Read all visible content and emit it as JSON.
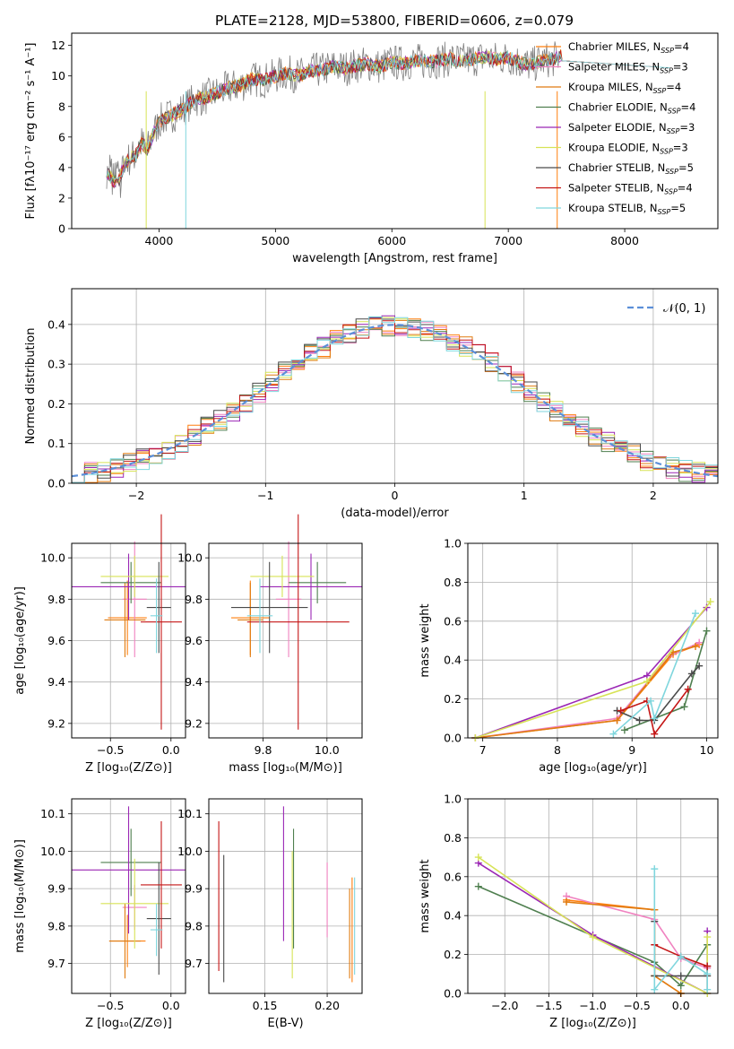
{
  "figure_title": "PLATE=2128, MJD=53800, FIBERID=0606, z=0.079",
  "colors": [
    "#ff7f0e",
    "#f082c0",
    "#e07b10",
    "#4f7f4f",
    "#9b27b5",
    "#d7e356",
    "#4a4a4a",
    "#c41616",
    "#7fd6dd"
  ],
  "chart_data": [
    {
      "id": "spectrum",
      "type": "line",
      "title": "PLATE=2128, MJD=53800, FIBERID=0606, z=0.079",
      "xlabel": "wavelength [Angstrom, rest frame]",
      "ylabel": "Flux [fλ10⁻¹⁷ erg cm⁻² s⁻¹ A⁻¹]",
      "xlim": [
        3250,
        8800
      ],
      "ylim": [
        0,
        12.8
      ],
      "xticks": [
        4000,
        5000,
        6000,
        7000,
        8000
      ],
      "yticks": [
        0,
        2,
        4,
        6,
        8,
        10,
        12
      ],
      "grid": false,
      "legend_position": "top-right",
      "data_color": "#808080",
      "data_x": [
        3550,
        3600,
        3650,
        3700,
        3750,
        3800,
        3850,
        3900,
        3950,
        4000,
        4100,
        4200,
        4300,
        4400,
        4500,
        4600,
        4700,
        4800,
        4900,
        5000,
        5100,
        5200,
        5300,
        5400,
        5500,
        5600,
        5700,
        5800,
        5900,
        6000,
        6100,
        6200,
        6300,
        6400,
        6500,
        6600,
        6700,
        6800,
        6900,
        7000,
        7100,
        7200,
        7300,
        7400,
        7450
      ],
      "data_y": [
        3.8,
        3.2,
        3.0,
        4.2,
        4.6,
        4.8,
        5.6,
        5.2,
        6.2,
        7.0,
        7.4,
        7.8,
        8.4,
        8.6,
        8.9,
        9.2,
        9.4,
        9.8,
        9.7,
        10.0,
        10.2,
        10.0,
        10.3,
        10.4,
        10.6,
        10.5,
        10.7,
        10.8,
        10.6,
        10.9,
        10.8,
        11.0,
        10.9,
        11.0,
        11.1,
        11.0,
        11.1,
        11.2,
        11.1,
        11.2,
        10.9,
        10.7,
        11.0,
        11.1,
        11.3
      ],
      "series": [
        {
          "name": "Chabrier MILES, N_SSP=4"
        },
        {
          "name": "Salpeter MILES, N_SSP=3"
        },
        {
          "name": "Kroupa MILES, N_SSP=4"
        },
        {
          "name": "Chabrier ELODIE, N_SSP=4"
        },
        {
          "name": "Salpeter ELODIE, N_SSP=3"
        },
        {
          "name": "Kroupa ELODIE, N_SSP=3"
        },
        {
          "name": "Chabrier STELIB, N_SSP=5"
        },
        {
          "name": "Salpeter STELIB, N_SSP=4"
        },
        {
          "name": "Kroupa STELIB, N_SSP=5"
        }
      ]
    },
    {
      "id": "residuals",
      "type": "line",
      "xlabel": "(data-model)/error",
      "ylabel": "Normed distribution",
      "xlim": [
        -2.5,
        2.5
      ],
      "ylim": [
        0,
        0.49
      ],
      "xticks": [
        -2,
        -1,
        0,
        1,
        2
      ],
      "yticks": [
        0.0,
        0.1,
        0.2,
        0.3,
        0.4
      ],
      "grid": true,
      "legend_position": "top-right",
      "legend": "𝒩(0, 1)",
      "gaussian_color": "#5b8fd8"
    },
    {
      "id": "age_vs_Z",
      "type": "scatter",
      "xlabel": "Z [log₁₀(Z/Z⊙)]",
      "ylabel": "age  [log₁₀(age/yr)]",
      "xlim": [
        -0.82,
        0.12
      ],
      "ylim": [
        9.13,
        10.07
      ],
      "xticks": [
        -0.5,
        0.0
      ],
      "yticks": [
        9.2,
        9.4,
        9.6,
        9.8,
        10.0
      ],
      "grid": true,
      "points": [
        {
          "x": -0.36,
          "y": 9.71,
          "xerr": 0.16,
          "yerr": 0.18
        },
        {
          "x": -0.3,
          "y": 9.8,
          "xerr": 0.1,
          "yerr": 0.28
        },
        {
          "x": -0.38,
          "y": 9.7,
          "xerr": 0.17,
          "yerr": 0.18
        },
        {
          "x": -0.33,
          "y": 9.88,
          "xerr": 0.25,
          "yerr": 0.1
        },
        {
          "x": -0.35,
          "y": 9.86,
          "xerr": 0.47,
          "yerr": 0.16
        },
        {
          "x": -0.3,
          "y": 9.91,
          "xerr": 0.28,
          "yerr": 0.1
        },
        {
          "x": -0.1,
          "y": 9.76,
          "xerr": 0.1,
          "yerr": 0.22
        },
        {
          "x": -0.08,
          "y": 9.69,
          "xerr": 0.17,
          "yerr": 0.52
        },
        {
          "x": -0.12,
          "y": 9.72,
          "xerr": 0.05,
          "yerr": 0.18
        }
      ]
    },
    {
      "id": "age_vs_mass",
      "type": "scatter",
      "xlabel": "mass [log₁₀(M/M⊙)]",
      "ylabel": "",
      "xlim": [
        9.63,
        10.11
      ],
      "ylim": [
        9.13,
        10.07
      ],
      "xticks": [
        9.8,
        10.0
      ],
      "yticks": [
        9.2,
        9.4,
        9.6,
        9.8,
        10.0
      ],
      "grid": true,
      "points": [
        {
          "x": 9.76,
          "y": 9.71,
          "xerr": 0.06,
          "yerr": 0.18
        },
        {
          "x": 9.88,
          "y": 9.8,
          "xerr": 0.04,
          "yerr": 0.28
        },
        {
          "x": 9.76,
          "y": 9.7,
          "xerr": 0.04,
          "yerr": 0.18
        },
        {
          "x": 9.97,
          "y": 9.88,
          "xerr": 0.09,
          "yerr": 0.1
        },
        {
          "x": 9.95,
          "y": 9.86,
          "xerr": 0.16,
          "yerr": 0.16
        },
        {
          "x": 9.86,
          "y": 9.91,
          "xerr": 0.1,
          "yerr": 0.1
        },
        {
          "x": 9.82,
          "y": 9.76,
          "xerr": 0.12,
          "yerr": 0.22
        },
        {
          "x": 9.91,
          "y": 9.69,
          "xerr": 0.16,
          "yerr": 0.52
        },
        {
          "x": 9.79,
          "y": 9.72,
          "xerr": 0.04,
          "yerr": 0.18
        }
      ]
    },
    {
      "id": "massweight_vs_age",
      "type": "line",
      "xlabel": "age  [log₁₀(age/yr)]",
      "ylabel": "mass weight",
      "xlim": [
        6.8,
        10.15
      ],
      "ylim": [
        0,
        1
      ],
      "xticks": [
        7,
        8,
        9,
        10
      ],
      "yticks": [
        0.0,
        0.2,
        0.4,
        0.6,
        0.8,
        1.0
      ],
      "grid": true,
      "lines": [
        {
          "x": [
            6.9,
            8.8,
            9.55,
            9.9
          ],
          "y": [
            0.0,
            0.09,
            0.43,
            0.48
          ]
        },
        {
          "x": [
            6.9,
            8.8,
            9.5,
            9.9
          ],
          "y": [
            0.0,
            0.1,
            0.42,
            0.49
          ]
        },
        {
          "x": [
            6.9,
            8.8,
            9.55,
            9.85
          ],
          "y": [
            0.0,
            0.09,
            0.44,
            0.47
          ]
        },
        {
          "x": [
            8.9,
            9.7,
            10.0
          ],
          "y": [
            0.04,
            0.16,
            0.55
          ]
        },
        {
          "x": [
            6.9,
            9.2,
            10.0
          ],
          "y": [
            0.0,
            0.32,
            0.67
          ]
        },
        {
          "x": [
            6.9,
            9.2,
            10.05
          ],
          "y": [
            0.0,
            0.29,
            0.7
          ]
        },
        {
          "x": [
            8.8,
            9.1,
            9.3,
            9.8,
            9.9
          ],
          "y": [
            0.14,
            0.09,
            0.09,
            0.33,
            0.37
          ]
        },
        {
          "x": [
            8.85,
            9.2,
            9.3,
            9.75
          ],
          "y": [
            0.14,
            0.19,
            0.02,
            0.25
          ]
        },
        {
          "x": [
            8.75,
            9.25,
            9.3,
            9.85
          ],
          "y": [
            0.02,
            0.19,
            0.1,
            0.64
          ]
        }
      ]
    },
    {
      "id": "mass_vs_Z",
      "type": "scatter",
      "xlabel": "Z [log₁₀(Z/Z⊙)]",
      "ylabel": "mass [log₁₀(M/M⊙)]",
      "xlim": [
        -0.82,
        0.12
      ],
      "ylim": [
        9.62,
        10.14
      ],
      "xticks": [
        -0.5,
        0.0
      ],
      "yticks": [
        9.7,
        9.8,
        9.9,
        10.0,
        10.1
      ],
      "grid": true,
      "points": [
        {
          "x": -0.36,
          "y": 9.76,
          "xerr": 0.15,
          "yerr": 0.07
        },
        {
          "x": -0.3,
          "y": 9.85,
          "xerr": 0.1,
          "yerr": 0.06
        },
        {
          "x": -0.38,
          "y": 9.76,
          "xerr": 0.13,
          "yerr": 0.1
        },
        {
          "x": -0.33,
          "y": 9.97,
          "xerr": 0.25,
          "yerr": 0.09
        },
        {
          "x": -0.35,
          "y": 9.95,
          "xerr": 0.47,
          "yerr": 0.17
        },
        {
          "x": -0.3,
          "y": 9.86,
          "xerr": 0.28,
          "yerr": 0.12
        },
        {
          "x": -0.1,
          "y": 9.82,
          "xerr": 0.1,
          "yerr": 0.15
        },
        {
          "x": -0.08,
          "y": 9.91,
          "xerr": 0.17,
          "yerr": 0.17
        },
        {
          "x": -0.12,
          "y": 9.79,
          "xerr": 0.05,
          "yerr": 0.07
        }
      ]
    },
    {
      "id": "mass_vs_ebv",
      "type": "scatter",
      "xlabel": "E(B-V)",
      "ylabel": "",
      "xlim": [
        0.105,
        0.228
      ],
      "ylim": [
        9.62,
        10.14
      ],
      "xticks": [
        0.15,
        0.2
      ],
      "yticks": [
        9.7,
        9.8,
        9.9,
        10.0,
        10.1
      ],
      "grid": true,
      "points": [
        {
          "x": 0.22,
          "y": 9.79,
          "xerr": 0,
          "yerr": 0.14
        },
        {
          "x": 0.2,
          "y": 9.87,
          "xerr": 0,
          "yerr": 0.1
        },
        {
          "x": 0.218,
          "y": 9.78,
          "xerr": 0,
          "yerr": 0.12
        },
        {
          "x": 0.173,
          "y": 9.9,
          "xerr": 0,
          "yerr": 0.16
        },
        {
          "x": 0.165,
          "y": 9.94,
          "xerr": 0,
          "yerr": 0.18
        },
        {
          "x": 0.172,
          "y": 9.83,
          "xerr": 0,
          "yerr": 0.17
        },
        {
          "x": 0.117,
          "y": 9.82,
          "xerr": 0,
          "yerr": 0.17
        },
        {
          "x": 0.113,
          "y": 9.88,
          "xerr": 0,
          "yerr": 0.2
        },
        {
          "x": 0.222,
          "y": 9.8,
          "xerr": 0,
          "yerr": 0.13
        }
      ]
    },
    {
      "id": "massweight_vs_Z",
      "type": "line",
      "xlabel": "Z [log₁₀(Z/Z⊙)]",
      "ylabel": "mass weight",
      "xlim": [
        -2.42,
        0.42
      ],
      "ylim": [
        0,
        1
      ],
      "xticks": [
        -2.0,
        -1.5,
        -1.0,
        -0.5,
        0.0
      ],
      "yticks": [
        0.0,
        0.2,
        0.4,
        0.6,
        0.8,
        1.0
      ],
      "grid": true,
      "lines": [
        {
          "x": [
            -1.3,
            -0.3,
            -0.3,
            0.0
          ],
          "y": [
            0.48,
            0.43,
            0.09,
            0.0
          ]
        },
        {
          "x": [
            -1.3,
            -0.3,
            0.0,
            0.3
          ],
          "y": [
            0.5,
            0.38,
            0.18,
            0.13
          ]
        },
        {
          "x": [
            -1.3,
            -0.3,
            -0.3,
            0.0
          ],
          "y": [
            0.47,
            0.43,
            0.09,
            0.0
          ]
        },
        {
          "x": [
            -2.3,
            -0.3,
            0.0,
            0.3
          ],
          "y": [
            0.55,
            0.16,
            0.04,
            0.25
          ]
        },
        {
          "x": [
            -2.3,
            -1.0,
            0.3,
            0.3
          ],
          "y": [
            0.67,
            0.3,
            0.0,
            0.32
          ]
        },
        {
          "x": [
            -2.3,
            -1.0,
            0.3,
            0.3
          ],
          "y": [
            0.7,
            0.29,
            0.0,
            0.29
          ]
        },
        {
          "x": [
            -0.3,
            -0.3,
            0.0,
            0.3,
            0.3
          ],
          "y": [
            0.37,
            0.09,
            0.09,
            0.09,
            0.14
          ]
        },
        {
          "x": [
            -0.3,
            0.0,
            0.3
          ],
          "y": [
            0.25,
            0.19,
            0.14
          ]
        },
        {
          "x": [
            -0.3,
            -0.3,
            0.0,
            0.3,
            0.3
          ],
          "y": [
            0.64,
            0.02,
            0.19,
            0.1,
            0.02
          ]
        }
      ]
    }
  ]
}
